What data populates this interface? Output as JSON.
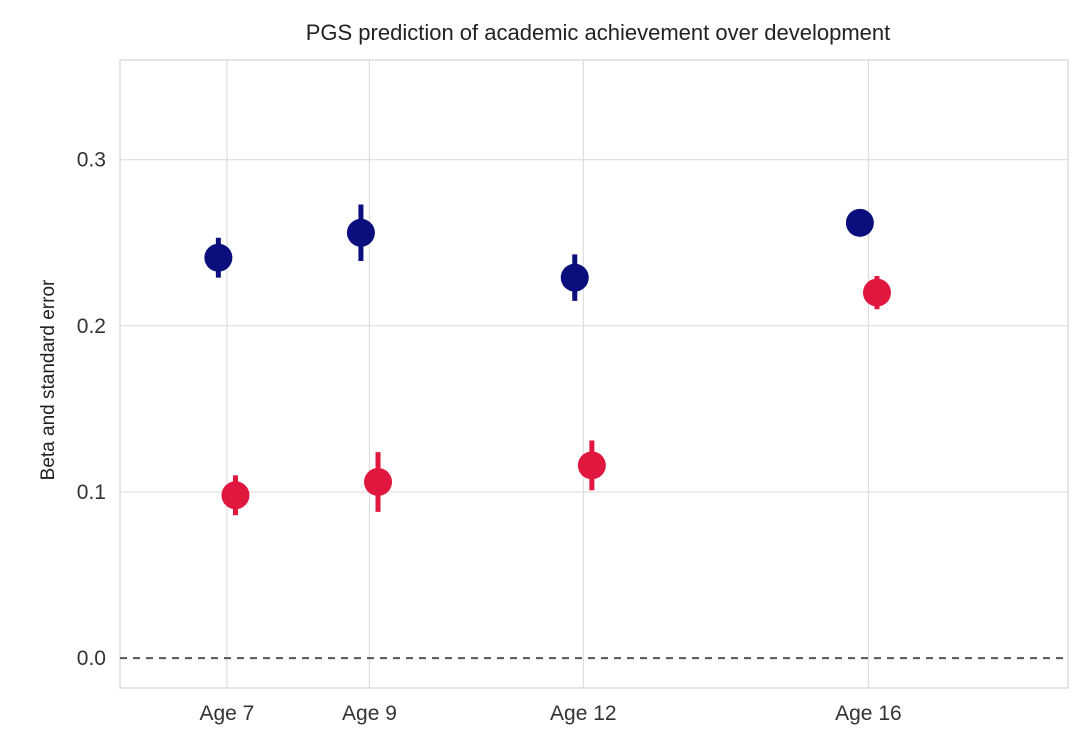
{
  "chart_data": {
    "type": "scatter",
    "title": "PGS prediction of academic achievement over development",
    "xlabel": "",
    "ylabel": "Beta and standard error",
    "categories": [
      "Age 7",
      "Age 9",
      "Age 12",
      "Age 16"
    ],
    "x_positions": [
      7,
      9,
      12,
      16
    ],
    "xlim": [
      5.5,
      18.8
    ],
    "ylim": [
      -0.018,
      0.36
    ],
    "yticks": [
      "0.0",
      "0.1",
      "0.2",
      "0.3"
    ],
    "grid": true,
    "legend": "none",
    "reference_line": {
      "y": 0.0,
      "style": "dashed"
    },
    "series": [
      {
        "color": "#0a0f7d",
        "offset": -0.12,
        "values": [
          0.241,
          0.256,
          0.229,
          0.262
        ],
        "errors": [
          0.012,
          0.017,
          0.014,
          0.008
        ]
      },
      {
        "color": "#e0173f",
        "offset": 0.12,
        "values": [
          0.098,
          0.106,
          0.116,
          0.22
        ],
        "errors": [
          0.012,
          0.018,
          0.015,
          0.01
        ]
      }
    ]
  }
}
